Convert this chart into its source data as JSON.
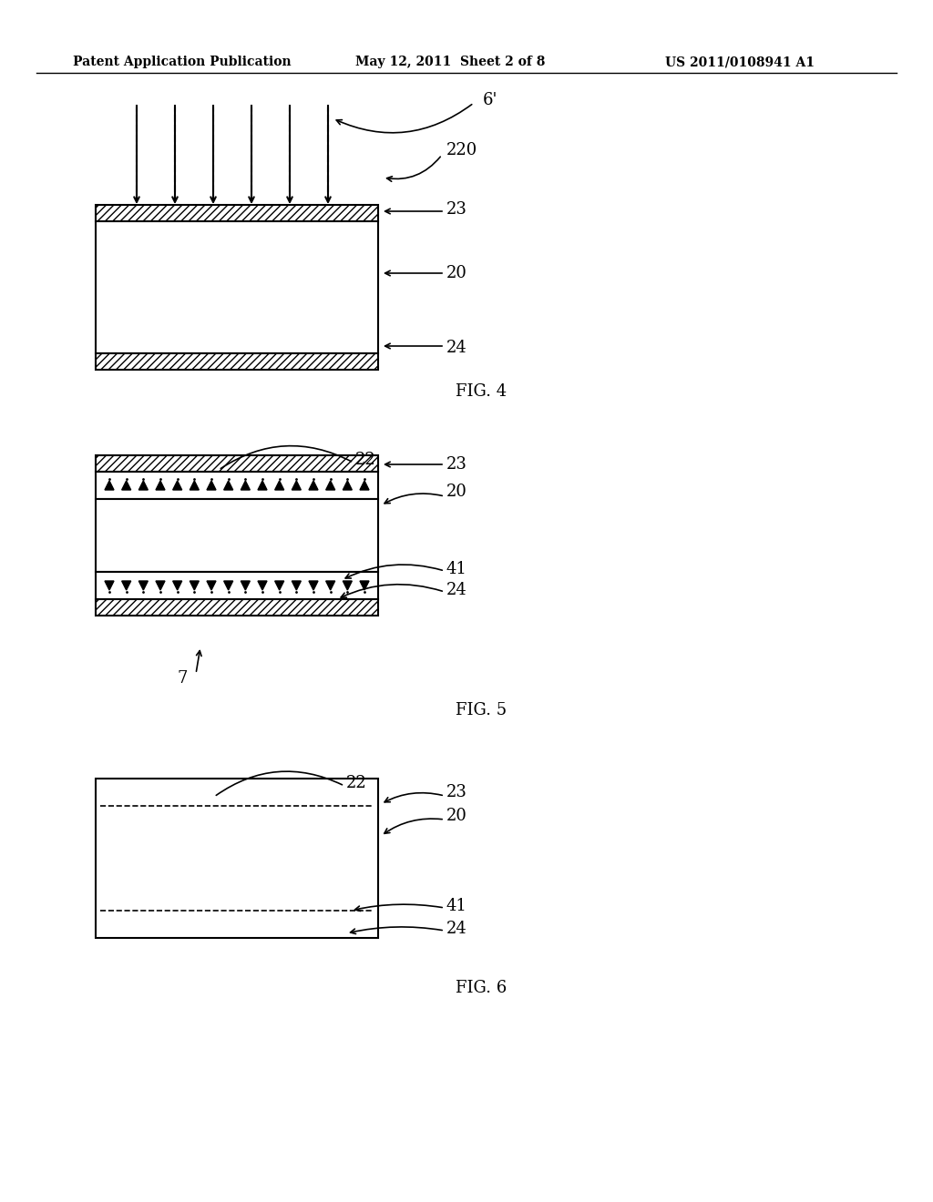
{
  "bg_color": "#ffffff",
  "header_left": "Patent Application Publication",
  "header_center": "May 12, 2011  Sheet 2 of 8",
  "header_right": "US 2011/0108941 A1",
  "fig4_label": "FIG. 4",
  "fig5_label": "FIG. 5",
  "fig6_label": "FIG. 6",
  "labels": {
    "6prime": "6'",
    "220": "220",
    "23_fig4": "23",
    "20_fig4": "20",
    "24_fig4": "24",
    "22_fig5": "22",
    "23_fig5": "23",
    "20_fig5": "20",
    "41_fig5": "41",
    "24_fig5": "24",
    "7_fig5": "7",
    "22_fig6": "22",
    "23_fig6": "23",
    "20_fig6": "20",
    "41_fig6": "41",
    "24_fig6": "24"
  }
}
